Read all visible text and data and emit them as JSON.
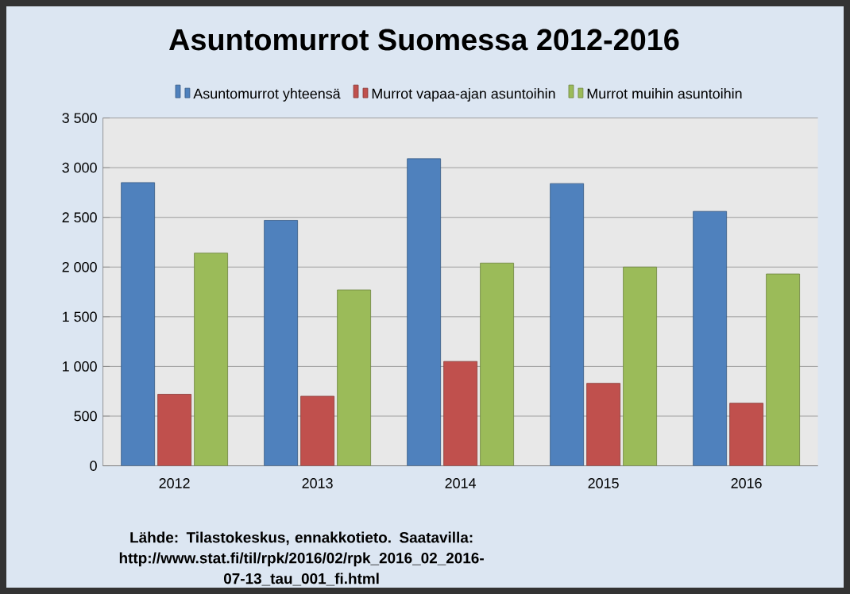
{
  "chart_data": {
    "type": "bar",
    "title": "Asuntomurrot  Suomessa 2012-2016",
    "categories": [
      "2012",
      "2013",
      "2014",
      "2015",
      "2016"
    ],
    "series": [
      {
        "name": "Asuntomurrot yhteensä",
        "color": "#4f81bd",
        "values": [
          2850,
          2470,
          3090,
          2840,
          2560
        ]
      },
      {
        "name": "Murrot vapaa-ajan  asuntoihin",
        "color": "#c0504d",
        "values": [
          720,
          700,
          1050,
          830,
          630
        ]
      },
      {
        "name": "Murrot muihin  asuntoihin",
        "color": "#9bbb59",
        "values": [
          2140,
          1770,
          2040,
          2000,
          1930
        ]
      }
    ],
    "ylim": [
      0,
      3500
    ],
    "yticks": [
      {
        "value": 0,
        "label": "0"
      },
      {
        "value": 500,
        "label": "500"
      },
      {
        "value": 1000,
        "label": "1 000"
      },
      {
        "value": 1500,
        "label": "1 500"
      },
      {
        "value": 2000,
        "label": "2 000"
      },
      {
        "value": 2500,
        "label": "2 500"
      },
      {
        "value": 3000,
        "label": "3 000"
      },
      {
        "value": 3500,
        "label": "3 500"
      }
    ],
    "grid": "y",
    "legend": "top",
    "annotations": [
      "Lähde: Tilastokeskus,  ennakkotieto. Saatavilla: http://www.stat.fi/til/rpk/2016/02/rpk_2016_02_2016-07-13_tau_001_fi.html"
    ]
  }
}
